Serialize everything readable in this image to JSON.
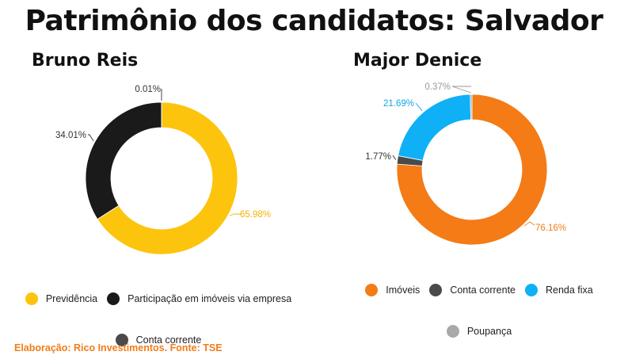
{
  "title": "Patrimônio dos candidatos: Salvador",
  "footer": "Elaboração: Rico Investimentos. Fonte: TSE",
  "chart_data": [
    {
      "type": "pie",
      "title": "Bruno Reis",
      "donut": true,
      "legend_position": "bottom",
      "series": [
        {
          "name": "Previdência",
          "value": 65.98,
          "label": "65.98%",
          "color": "#fdc40d",
          "label_color": "#f2b400"
        },
        {
          "name": "Participação em imóveis via empresa",
          "value": 34.01,
          "label": "34.01%",
          "color": "#1a1a1a",
          "label_color": "#333333"
        },
        {
          "name": "Conta corrente",
          "value": 0.01,
          "label": "0.01%",
          "color": "#4a4a4a",
          "label_color": "#333333"
        }
      ]
    },
    {
      "type": "pie",
      "title": "Major Denice",
      "donut": true,
      "legend_position": "bottom",
      "series": [
        {
          "name": "Imóveis",
          "value": 76.16,
          "label": "76.16%",
          "color": "#f47b16",
          "label_color": "#f07d1a"
        },
        {
          "name": "Conta corrente",
          "value": 1.77,
          "label": "1.77%",
          "color": "#4a4a4a",
          "label_color": "#333333"
        },
        {
          "name": "Renda fixa",
          "value": 21.69,
          "label": "21.69%",
          "color": "#0fb0f5",
          "label_color": "#0fa6e6"
        },
        {
          "name": "Poupança",
          "value": 0.37,
          "label": "0.37%",
          "color": "#a9a9a9",
          "label_color": "#999999"
        }
      ]
    }
  ]
}
